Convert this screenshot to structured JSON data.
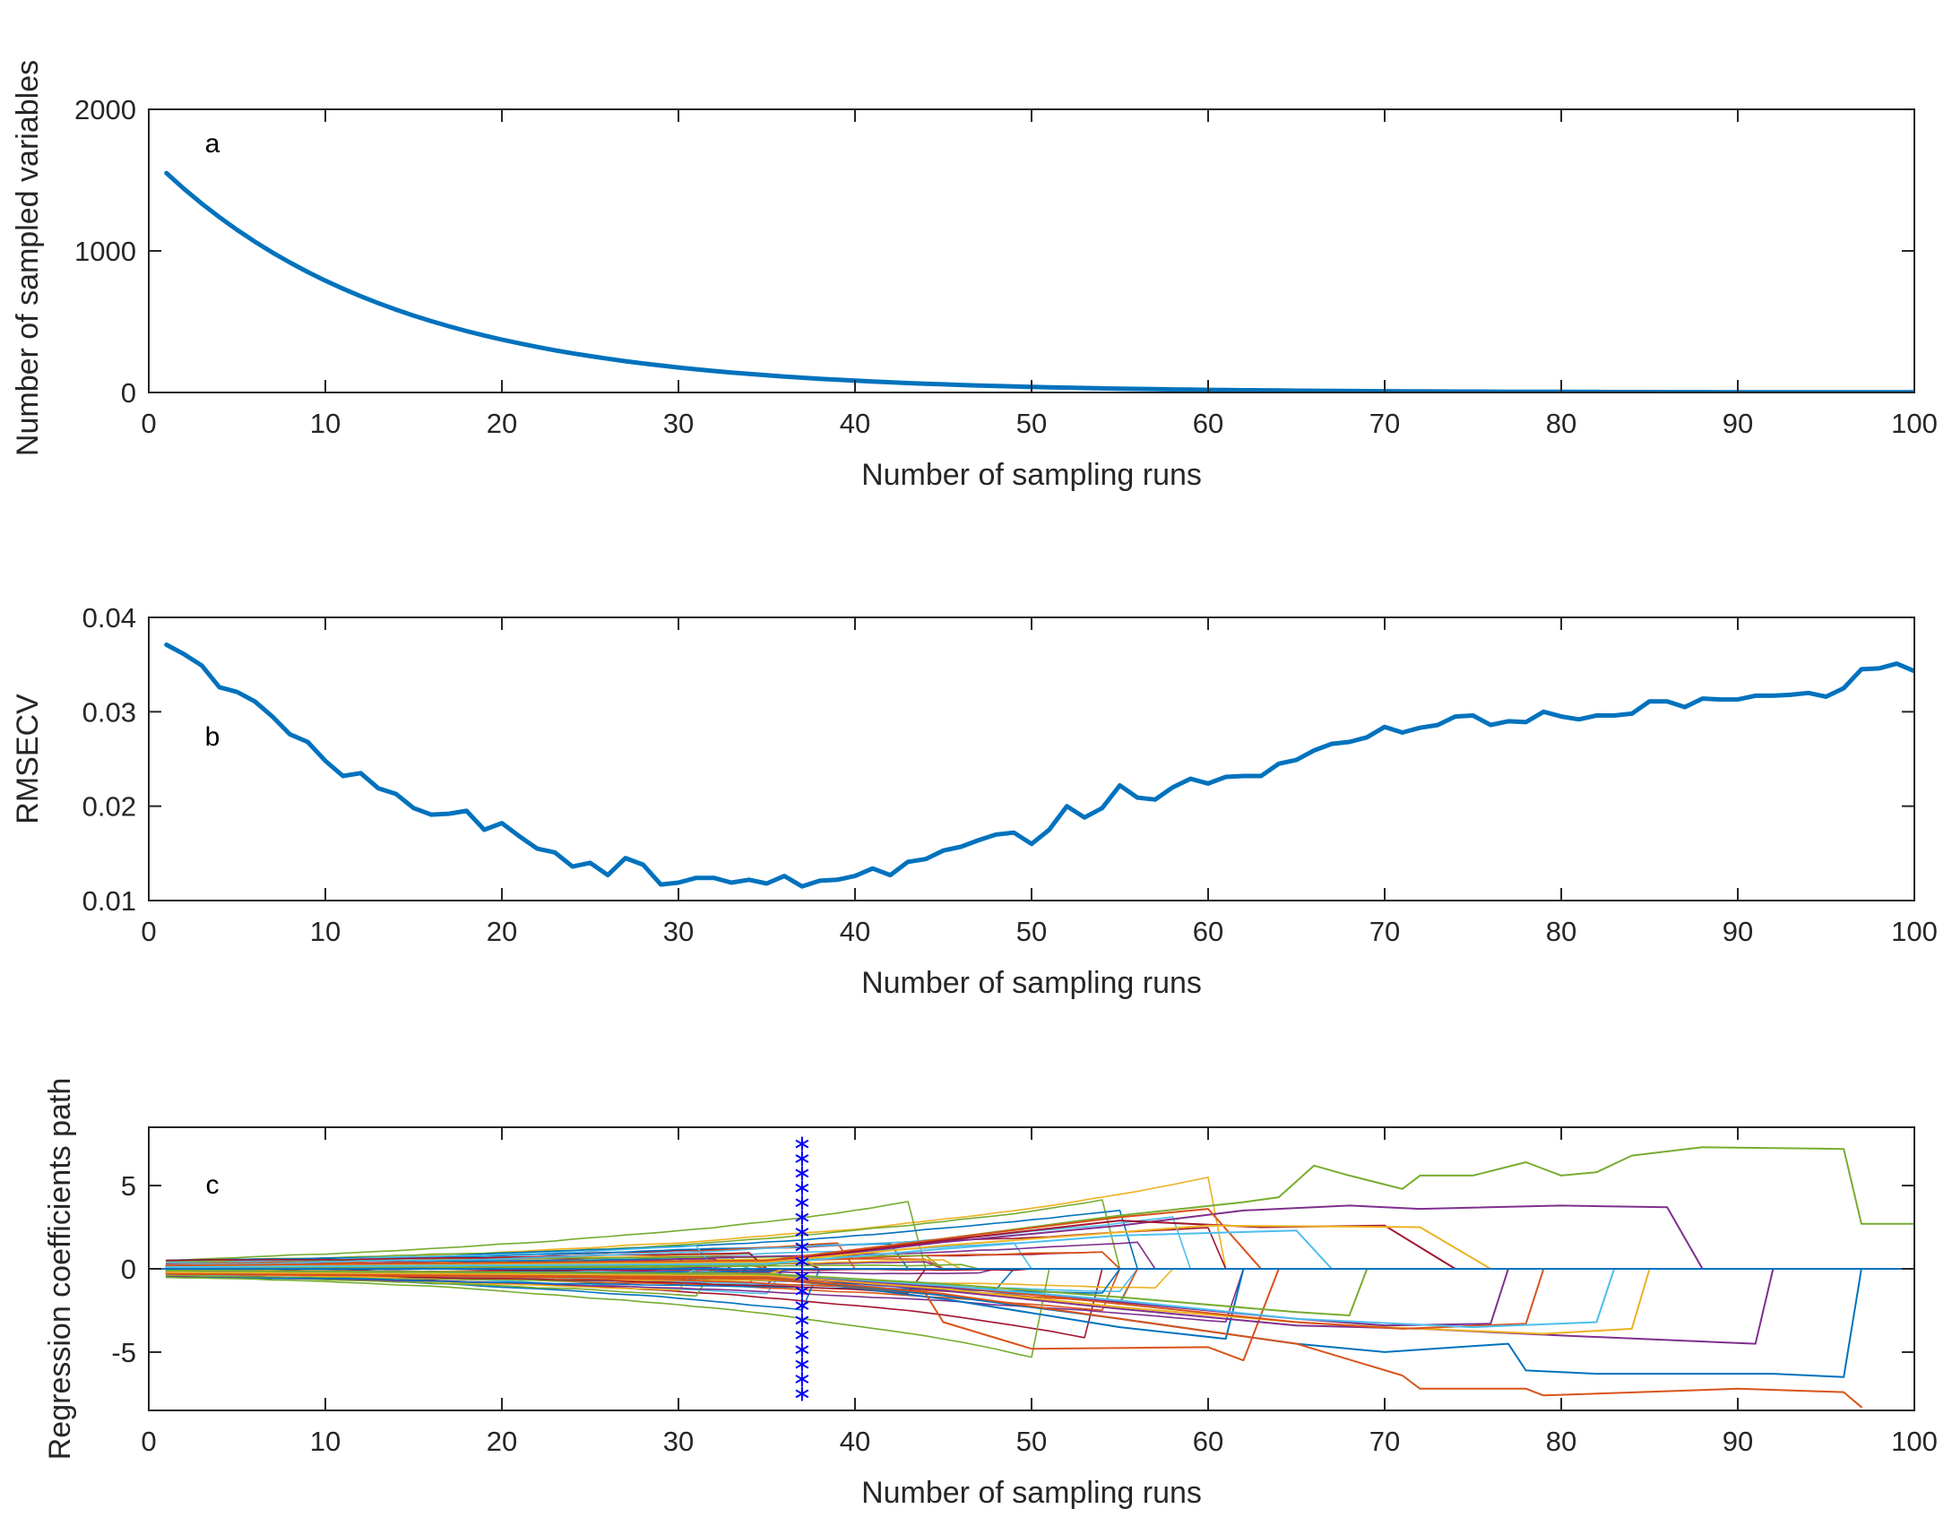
{
  "chart_data": [
    {
      "type": "line",
      "panel_label": "a",
      "xlabel": "Number of sampling runs",
      "ylabel": "Number of sampled variables",
      "xlim": [
        0,
        100
      ],
      "ylim": [
        0,
        2000
      ],
      "xticks": [
        0,
        10,
        20,
        30,
        40,
        50,
        60,
        70,
        80,
        90,
        100
      ],
      "yticks": [
        0,
        1000,
        2000
      ],
      "ytick_labels": [
        "0",
        "1000",
        "2000"
      ],
      "color": "#0072BD",
      "series": [
        {
          "name": "sampled variables",
          "model": "exponential decay",
          "x_start": 1,
          "x_end": 100,
          "y_start": 1550,
          "decay_per_run": 0.0749,
          "y_end": 1
        }
      ]
    },
    {
      "type": "line",
      "panel_label": "b",
      "xlabel": "Number of sampling runs",
      "ylabel": "RMSECV",
      "xlim": [
        0,
        100
      ],
      "ylim": [
        0.01,
        0.04
      ],
      "xticks": [
        0,
        10,
        20,
        30,
        40,
        50,
        60,
        70,
        80,
        90,
        100
      ],
      "yticks": [
        0.01,
        0.02,
        0.03,
        0.04
      ],
      "ytick_labels": [
        "0.01",
        "0.02",
        "0.03",
        "0.04"
      ],
      "color": "#0072BD",
      "series": [
        {
          "name": "RMSECV",
          "x": [
            1,
            2,
            3,
            4,
            5,
            6,
            7,
            8,
            9,
            10,
            11,
            12,
            13,
            14,
            15,
            16,
            17,
            18,
            19,
            20,
            21,
            22,
            23,
            24,
            25,
            26,
            27,
            28,
            29,
            30,
            31,
            32,
            33,
            34,
            35,
            36,
            37,
            38,
            39,
            40,
            41,
            42,
            43,
            44,
            45,
            46,
            47,
            48,
            49,
            50,
            51,
            52,
            53,
            54,
            55,
            56,
            57,
            58,
            59,
            60,
            61,
            62,
            63,
            64,
            65,
            66,
            67,
            68,
            69,
            70,
            71,
            72,
            73,
            74,
            75,
            76,
            77,
            78,
            79,
            80,
            81,
            82,
            83,
            84,
            85,
            86,
            87,
            88,
            89,
            90,
            91,
            92,
            93,
            94,
            95,
            96,
            97,
            98,
            99,
            100
          ],
          "values": [
            0.0371,
            0.0361,
            0.0349,
            0.0326,
            0.0321,
            0.0311,
            0.0295,
            0.0276,
            0.0268,
            0.0248,
            0.0232,
            0.0235,
            0.0219,
            0.0213,
            0.0198,
            0.0191,
            0.0192,
            0.0195,
            0.0175,
            0.0182,
            0.0168,
            0.0155,
            0.0151,
            0.0136,
            0.014,
            0.0127,
            0.0145,
            0.0138,
            0.0117,
            0.0119,
            0.0124,
            0.0124,
            0.0119,
            0.0122,
            0.0118,
            0.0126,
            0.0115,
            0.0121,
            0.0122,
            0.0126,
            0.0134,
            0.0127,
            0.0141,
            0.0144,
            0.0153,
            0.0157,
            0.0164,
            0.017,
            0.0172,
            0.016,
            0.0175,
            0.02,
            0.0188,
            0.0198,
            0.0222,
            0.0209,
            0.0207,
            0.022,
            0.0229,
            0.0224,
            0.0231,
            0.0232,
            0.0232,
            0.0245,
            0.0249,
            0.0259,
            0.0266,
            0.0268,
            0.0273,
            0.0284,
            0.0278,
            0.0283,
            0.0286,
            0.0295,
            0.0296,
            0.0286,
            0.029,
            0.0289,
            0.03,
            0.0295,
            0.0292,
            0.0296,
            0.0296,
            0.0298,
            0.0311,
            0.0311,
            0.0305,
            0.0314,
            0.0313,
            0.0313,
            0.0317,
            0.0317,
            0.0318,
            0.032,
            0.0316,
            0.0325,
            0.0345,
            0.0346,
            0.0351,
            0.0343
          ]
        }
      ]
    },
    {
      "type": "line",
      "panel_label": "c",
      "xlabel": "Number of sampling runs",
      "ylabel": "Regression coefficients path",
      "xlim": [
        0,
        100
      ],
      "ylim": [
        -8.5,
        8.5
      ],
      "xticks": [
        0,
        10,
        20,
        30,
        40,
        50,
        60,
        70,
        80,
        90,
        100
      ],
      "yticks": [
        -5,
        0,
        5
      ],
      "ytick_labels": [
        "-5",
        "0",
        "5"
      ],
      "optimal_run": 37,
      "marker_color": "#0000FF",
      "marker_y_range": [
        -7.5,
        7.5
      ],
      "color_cycle": [
        "#0072BD",
        "#D95319",
        "#EDB120",
        "#7E2F8E",
        "#77AC30",
        "#4DBEEE",
        "#A2142F"
      ],
      "series": [
        {
          "name": "coef 1",
          "color": "#77AC30",
          "x": [
            1,
            35,
            45,
            55,
            62,
            64,
            66,
            68,
            71,
            72,
            75,
            78,
            80,
            82,
            84,
            88,
            96,
            97,
            100
          ],
          "values": [
            0.1,
            0.2,
            1.8,
            3.2,
            4.0,
            4.3,
            6.2,
            5.6,
            4.8,
            5.6,
            5.6,
            6.4,
            5.6,
            5.8,
            6.8,
            7.3,
            7.2,
            2.7,
            2.7
          ]
        },
        {
          "name": "coef 2",
          "color": "#7E2F8E",
          "x": [
            1,
            35,
            45,
            55,
            62,
            68,
            72,
            80,
            86,
            88
          ],
          "values": [
            0.1,
            0.4,
            1.6,
            2.6,
            3.5,
            3.8,
            3.6,
            3.8,
            3.7,
            0
          ]
        },
        {
          "name": "coef 3",
          "color": "#D95319",
          "x": [
            1,
            35,
            45,
            55,
            60,
            63
          ],
          "values": [
            0.2,
            0.5,
            1.8,
            3.1,
            3.6,
            0
          ]
        },
        {
          "name": "coef 4",
          "color": "#A2142F",
          "x": [
            1,
            35,
            45,
            55,
            63,
            70,
            74
          ],
          "values": [
            0.1,
            0.4,
            1.7,
            2.9,
            2.5,
            2.6,
            0
          ]
        },
        {
          "name": "coef 5",
          "color": "#EDB120",
          "x": [
            1,
            35,
            45,
            55,
            60,
            72,
            76
          ],
          "values": [
            0.1,
            0.4,
            1.4,
            2.2,
            2.6,
            2.5,
            0
          ]
        },
        {
          "name": "coef 6",
          "color": "#4DBEEE",
          "x": [
            1,
            35,
            45,
            55,
            65,
            67
          ],
          "values": [
            0.1,
            0.3,
            1.2,
            2.0,
            2.3,
            0
          ]
        },
        {
          "name": "coef 7",
          "color": "#0072BD",
          "x": [
            1,
            35,
            45,
            55,
            61,
            62
          ],
          "values": [
            -0.2,
            -0.5,
            -1.8,
            -3.5,
            -4.2,
            0
          ]
        },
        {
          "name": "coef 8",
          "color": "#D95319",
          "x": [
            1,
            35,
            44,
            45,
            50,
            60,
            62,
            64
          ],
          "values": [
            -0.3,
            -0.6,
            -1.5,
            -3.2,
            -4.8,
            -4.7,
            -5.5,
            0
          ]
        },
        {
          "name": "coef 9",
          "color": "#0072BD",
          "x": [
            1,
            35,
            45,
            55,
            65,
            70,
            77,
            78,
            82,
            92,
            96,
            97
          ],
          "values": [
            -0.2,
            -0.5,
            -1.6,
            -3.0,
            -4.5,
            -5.0,
            -4.5,
            -6.1,
            -6.3,
            -6.3,
            -6.5,
            0
          ]
        },
        {
          "name": "coef 10",
          "color": "#D95319",
          "x": [
            1,
            35,
            45,
            55,
            65,
            71,
            72,
            78,
            79,
            90,
            96,
            97
          ],
          "values": [
            -0.3,
            -0.5,
            -1.5,
            -3.0,
            -4.5,
            -6.4,
            -7.2,
            -7.2,
            -7.6,
            -7.2,
            -7.4,
            -8.3
          ]
        },
        {
          "name": "coef 11",
          "color": "#7E2F8E",
          "x": [
            1,
            35,
            45,
            55,
            65,
            72,
            80,
            91,
            92
          ],
          "values": [
            -0.2,
            -0.4,
            -1.3,
            -2.4,
            -3.4,
            -3.6,
            -4.0,
            -4.5,
            0
          ]
        },
        {
          "name": "coef 12",
          "color": "#EDB120",
          "x": [
            1,
            35,
            45,
            55,
            65,
            70,
            79,
            84,
            85
          ],
          "values": [
            -0.2,
            -0.4,
            -1.2,
            -2.3,
            -3.2,
            -3.5,
            -3.9,
            -3.6,
            0
          ]
        },
        {
          "name": "coef 13",
          "color": "#7E2F8E",
          "x": [
            1,
            35,
            45,
            55,
            65,
            70,
            76,
            77
          ],
          "values": [
            -0.1,
            -0.3,
            -1.1,
            -2.0,
            -3.0,
            -3.4,
            -3.3,
            0
          ]
        },
        {
          "name": "coef 14",
          "color": "#D95319",
          "x": [
            1,
            35,
            45,
            55,
            65,
            71,
            78,
            79
          ],
          "values": [
            -0.1,
            -0.3,
            -1.0,
            -2.1,
            -3.2,
            -3.6,
            -3.3,
            0
          ]
        },
        {
          "name": "coef 15",
          "color": "#4DBEEE",
          "x": [
            1,
            35,
            45,
            55,
            65,
            75,
            82,
            83
          ],
          "values": [
            -0.1,
            -0.3,
            -1.0,
            -1.9,
            -3.0,
            -3.5,
            -3.2,
            0
          ]
        },
        {
          "name": "coef 16",
          "color": "#77AC30",
          "x": [
            1,
            35,
            45,
            55,
            65,
            68,
            69
          ],
          "values": [
            -0.1,
            -0.3,
            -0.9,
            -1.7,
            -2.6,
            -2.8,
            0
          ]
        }
      ]
    }
  ]
}
